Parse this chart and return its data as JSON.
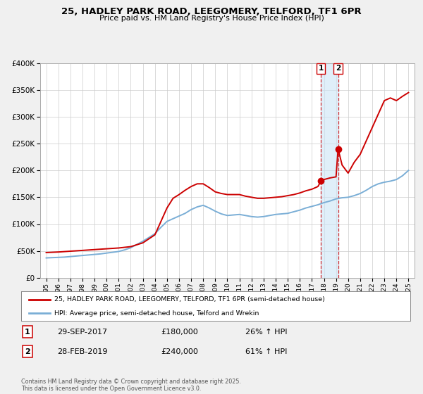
{
  "title1": "25, HADLEY PARK ROAD, LEEGOMERY, TELFORD, TF1 6PR",
  "title2": "Price paid vs. HM Land Registry's House Price Index (HPI)",
  "legend_line1": "25, HADLEY PARK ROAD, LEEGOMERY, TELFORD, TF1 6PR (semi-detached house)",
  "legend_line2": "HPI: Average price, semi-detached house, Telford and Wrekin",
  "sale1_label": "1",
  "sale1_date": "29-SEP-2017",
  "sale1_price": "£180,000",
  "sale1_hpi": "26% ↑ HPI",
  "sale1_year": 2017.75,
  "sale1_value": 180000,
  "sale2_label": "2",
  "sale2_date": "28-FEB-2019",
  "sale2_price": "£240,000",
  "sale2_hpi": "61% ↑ HPI",
  "sale2_year": 2019.17,
  "sale2_value": 240000,
  "vline1_x": 2017.75,
  "vline2_x": 2019.17,
  "shade_x1": 2017.75,
  "shade_x2": 2019.17,
  "line1_color": "#cc0000",
  "line2_color": "#7aaed6",
  "background_color": "#f0f0f0",
  "plot_bg_color": "#ffffff",
  "footer": "Contains HM Land Registry data © Crown copyright and database right 2025.\nThis data is licensed under the Open Government Licence v3.0.",
  "ylim": [
    0,
    400000
  ],
  "xlim_start": 1994.5,
  "xlim_end": 2025.5,
  "hpi_years": [
    1995.0,
    1995.5,
    1996.0,
    1996.5,
    1997.0,
    1997.5,
    1998.0,
    1998.5,
    1999.0,
    1999.5,
    2000.0,
    2000.5,
    2001.0,
    2001.5,
    2002.0,
    2002.5,
    2003.0,
    2003.5,
    2004.0,
    2004.5,
    2005.0,
    2005.5,
    2006.0,
    2006.5,
    2007.0,
    2007.5,
    2008.0,
    2008.5,
    2009.0,
    2009.5,
    2010.0,
    2010.5,
    2011.0,
    2011.5,
    2012.0,
    2012.5,
    2013.0,
    2013.5,
    2014.0,
    2014.5,
    2015.0,
    2015.5,
    2016.0,
    2016.5,
    2017.0,
    2017.5,
    2018.0,
    2018.5,
    2019.0,
    2019.5,
    2020.0,
    2020.5,
    2021.0,
    2021.5,
    2022.0,
    2022.5,
    2023.0,
    2023.5,
    2024.0,
    2024.5,
    2025.0
  ],
  "hpi_values": [
    37000,
    37500,
    38000,
    38500,
    39500,
    40500,
    41500,
    42500,
    43500,
    44500,
    46000,
    47500,
    49000,
    52000,
    56000,
    62000,
    68000,
    75000,
    82000,
    94000,
    105000,
    110000,
    115000,
    120000,
    127000,
    132000,
    135000,
    130000,
    124000,
    119000,
    116000,
    117000,
    118000,
    116000,
    114000,
    113000,
    114000,
    116000,
    118000,
    119000,
    120000,
    123000,
    126000,
    130000,
    133000,
    136000,
    140000,
    143000,
    147000,
    149000,
    150000,
    153000,
    157000,
    163000,
    170000,
    175000,
    178000,
    180000,
    183000,
    190000,
    200000
  ],
  "price_years": [
    1995.0,
    1995.5,
    1996.0,
    1997.0,
    1998.0,
    1999.0,
    2000.0,
    2001.0,
    2002.0,
    2003.0,
    2004.0,
    2004.5,
    2005.0,
    2005.5,
    2006.0,
    2006.5,
    2007.0,
    2007.5,
    2008.0,
    2008.5,
    2009.0,
    2009.5,
    2010.0,
    2010.5,
    2011.0,
    2011.5,
    2012.0,
    2012.5,
    2013.0,
    2013.5,
    2014.0,
    2014.5,
    2015.0,
    2015.5,
    2016.0,
    2016.5,
    2017.0,
    2017.5,
    2017.75,
    2018.0,
    2018.5,
    2019.0,
    2019.17,
    2019.5,
    2020.0,
    2020.5,
    2021.0,
    2021.5,
    2022.0,
    2022.5,
    2023.0,
    2023.5,
    2024.0,
    2024.5,
    2025.0
  ],
  "price_values": [
    47000,
    47500,
    48000,
    49500,
    51000,
    52500,
    54000,
    55500,
    58000,
    65000,
    80000,
    105000,
    130000,
    148000,
    155000,
    163000,
    170000,
    175000,
    175000,
    168000,
    160000,
    157000,
    155000,
    155000,
    155000,
    152000,
    150000,
    148000,
    148000,
    149000,
    150000,
    151000,
    153000,
    155000,
    158000,
    162000,
    165000,
    170000,
    180000,
    183000,
    186000,
    188000,
    240000,
    210000,
    195000,
    215000,
    230000,
    255000,
    280000,
    305000,
    330000,
    335000,
    330000,
    338000,
    345000
  ]
}
